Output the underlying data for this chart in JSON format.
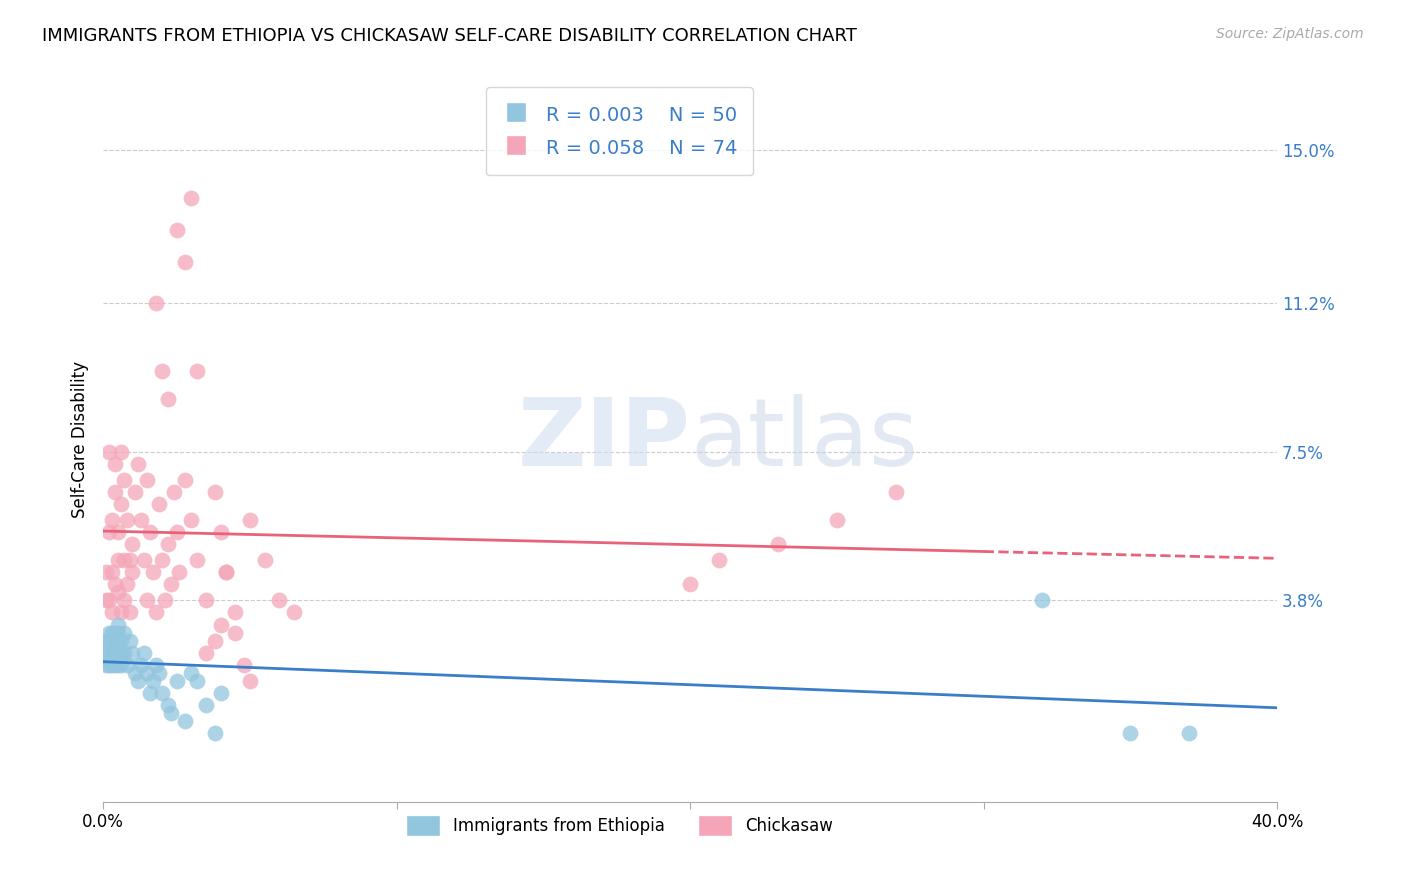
{
  "title": "IMMIGRANTS FROM ETHIOPIA VS CHICKASAW SELF-CARE DISABILITY CORRELATION CHART",
  "source": "Source: ZipAtlas.com",
  "ylabel": "Self-Care Disability",
  "ytick_labels": [
    "15.0%",
    "11.2%",
    "7.5%",
    "3.8%"
  ],
  "ytick_values": [
    0.15,
    0.112,
    0.075,
    0.038
  ],
  "xlim": [
    0.0,
    0.4
  ],
  "ylim": [
    -0.012,
    0.168
  ],
  "legend_r1": "R = 0.003",
  "legend_n1": "N = 50",
  "legend_r2": "R = 0.058",
  "legend_n2": "N = 74",
  "blue_color": "#92c5de",
  "pink_color": "#f4a6b8",
  "line_blue": "#3a7dc9",
  "line_pink": "#e8637a",
  "watermark_zip": "ZIP",
  "watermark_atlas": "atlas",
  "ethiopia_x": [
    0.001,
    0.001,
    0.001,
    0.002,
    0.002,
    0.002,
    0.002,
    0.003,
    0.003,
    0.003,
    0.003,
    0.004,
    0.004,
    0.004,
    0.004,
    0.005,
    0.005,
    0.005,
    0.005,
    0.005,
    0.006,
    0.006,
    0.006,
    0.007,
    0.007,
    0.008,
    0.009,
    0.01,
    0.011,
    0.012,
    0.013,
    0.014,
    0.015,
    0.016,
    0.017,
    0.018,
    0.019,
    0.02,
    0.022,
    0.023,
    0.025,
    0.028,
    0.03,
    0.032,
    0.035,
    0.038,
    0.04,
    0.32,
    0.35,
    0.37
  ],
  "ethiopia_y": [
    0.025,
    0.028,
    0.022,
    0.025,
    0.028,
    0.022,
    0.03,
    0.025,
    0.028,
    0.022,
    0.03,
    0.025,
    0.028,
    0.022,
    0.03,
    0.022,
    0.025,
    0.028,
    0.03,
    0.032,
    0.022,
    0.025,
    0.028,
    0.025,
    0.03,
    0.022,
    0.028,
    0.025,
    0.02,
    0.018,
    0.022,
    0.025,
    0.02,
    0.015,
    0.018,
    0.022,
    0.02,
    0.015,
    0.012,
    0.01,
    0.018,
    0.008,
    0.02,
    0.018,
    0.012,
    0.005,
    0.015,
    0.038,
    0.005,
    0.005
  ],
  "chickasaw_x": [
    0.001,
    0.001,
    0.002,
    0.002,
    0.002,
    0.003,
    0.003,
    0.003,
    0.004,
    0.004,
    0.004,
    0.005,
    0.005,
    0.005,
    0.006,
    0.006,
    0.006,
    0.007,
    0.007,
    0.007,
    0.008,
    0.008,
    0.009,
    0.009,
    0.01,
    0.01,
    0.011,
    0.012,
    0.013,
    0.014,
    0.015,
    0.015,
    0.016,
    0.017,
    0.018,
    0.019,
    0.02,
    0.021,
    0.022,
    0.023,
    0.024,
    0.025,
    0.026,
    0.028,
    0.03,
    0.032,
    0.035,
    0.038,
    0.04,
    0.042,
    0.045,
    0.05,
    0.055,
    0.06,
    0.065,
    0.2,
    0.21,
    0.23,
    0.25,
    0.27,
    0.018,
    0.02,
    0.022,
    0.025,
    0.028,
    0.03,
    0.032,
    0.035,
    0.038,
    0.04,
    0.042,
    0.045,
    0.048,
    0.05
  ],
  "chickasaw_y": [
    0.038,
    0.045,
    0.038,
    0.075,
    0.055,
    0.035,
    0.045,
    0.058,
    0.065,
    0.042,
    0.072,
    0.04,
    0.048,
    0.055,
    0.035,
    0.062,
    0.075,
    0.038,
    0.068,
    0.048,
    0.042,
    0.058,
    0.048,
    0.035,
    0.045,
    0.052,
    0.065,
    0.072,
    0.058,
    0.048,
    0.038,
    0.068,
    0.055,
    0.045,
    0.035,
    0.062,
    0.048,
    0.038,
    0.052,
    0.042,
    0.065,
    0.055,
    0.045,
    0.068,
    0.058,
    0.048,
    0.038,
    0.065,
    0.055,
    0.045,
    0.035,
    0.058,
    0.048,
    0.038,
    0.035,
    0.042,
    0.048,
    0.052,
    0.058,
    0.065,
    0.112,
    0.095,
    0.088,
    0.13,
    0.122,
    0.138,
    0.095,
    0.025,
    0.028,
    0.032,
    0.045,
    0.03,
    0.022,
    0.018
  ]
}
